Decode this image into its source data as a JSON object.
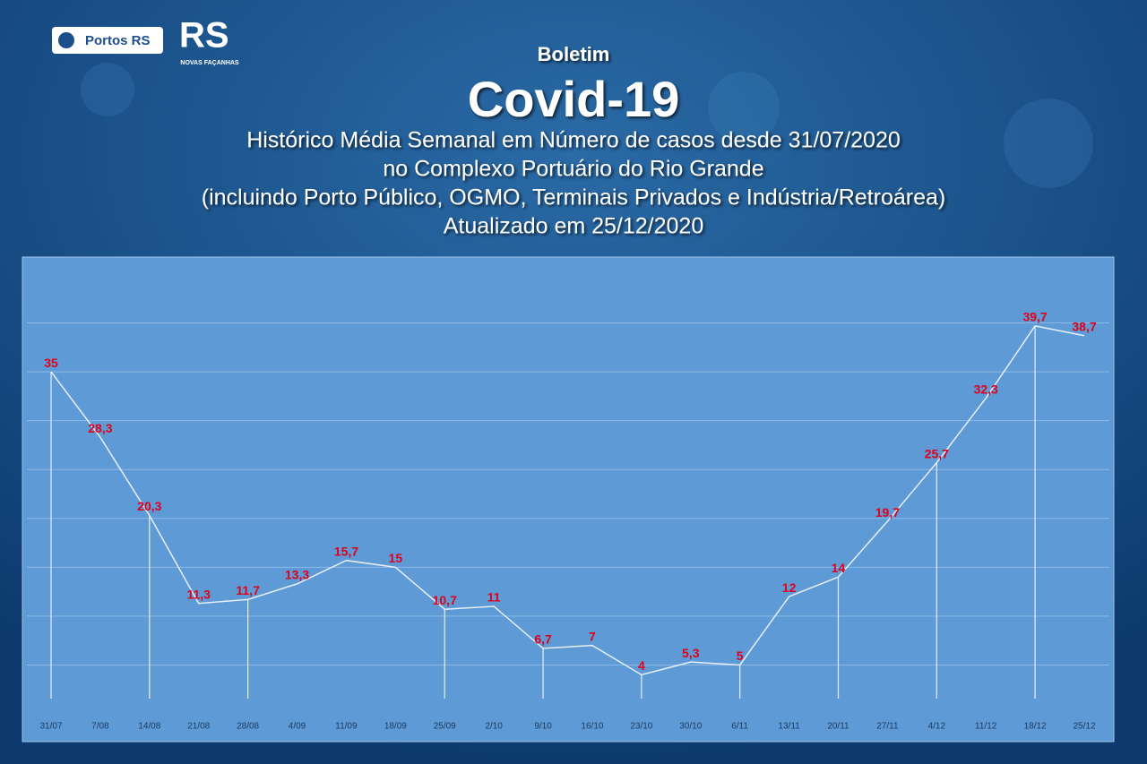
{
  "header": {
    "logo_text": "Portos RS",
    "logo2_text": "RS",
    "logo2_caption": "NOVAS FAÇANHAS"
  },
  "chart_data": {
    "type": "line",
    "kicker": "Boletim",
    "title": "Covid-19",
    "subtitle": [
      "Histórico Média Semanal em Número de casos desde 31/07/2020",
      "no Complexo Portuário do Rio Grande",
      "(incluindo Porto Público, OGMO, Terminais Privados e Indústria/Retroárea)",
      "Atualizado em 25/12/2020"
    ],
    "categories": [
      "31/07",
      "7/08",
      "14/08",
      "21/08",
      "28/08",
      "4/09",
      "11/09",
      "18/09",
      "25/09",
      "2/10",
      "9/10",
      "16/10",
      "23/10",
      "30/10",
      "6/11",
      "13/11",
      "20/11",
      "27/11",
      "4/12",
      "11/12",
      "18/12",
      "25/12"
    ],
    "values": [
      35,
      28.3,
      20.3,
      11.3,
      11.7,
      13.3,
      15.7,
      15,
      10.7,
      11,
      6.7,
      7,
      4,
      5.3,
      5,
      12,
      14,
      19.7,
      25.7,
      32.3,
      39.7,
      38.7
    ],
    "value_labels": [
      "35",
      "28,3",
      "20,3",
      "11,3",
      "11,7",
      "13,3",
      "15,7",
      "15",
      "10,7",
      "11",
      "6,7",
      "7",
      "4",
      "5,3",
      "5",
      "12",
      "14",
      "19,7",
      "25,7",
      "32,3",
      "39,7",
      "38,7"
    ],
    "color": "#e8eef8",
    "label_color": "#e0001a",
    "ylim": [
      0,
      45
    ],
    "yticks": [
      5,
      10,
      15,
      20,
      25,
      30,
      35,
      40
    ],
    "grid": true
  }
}
